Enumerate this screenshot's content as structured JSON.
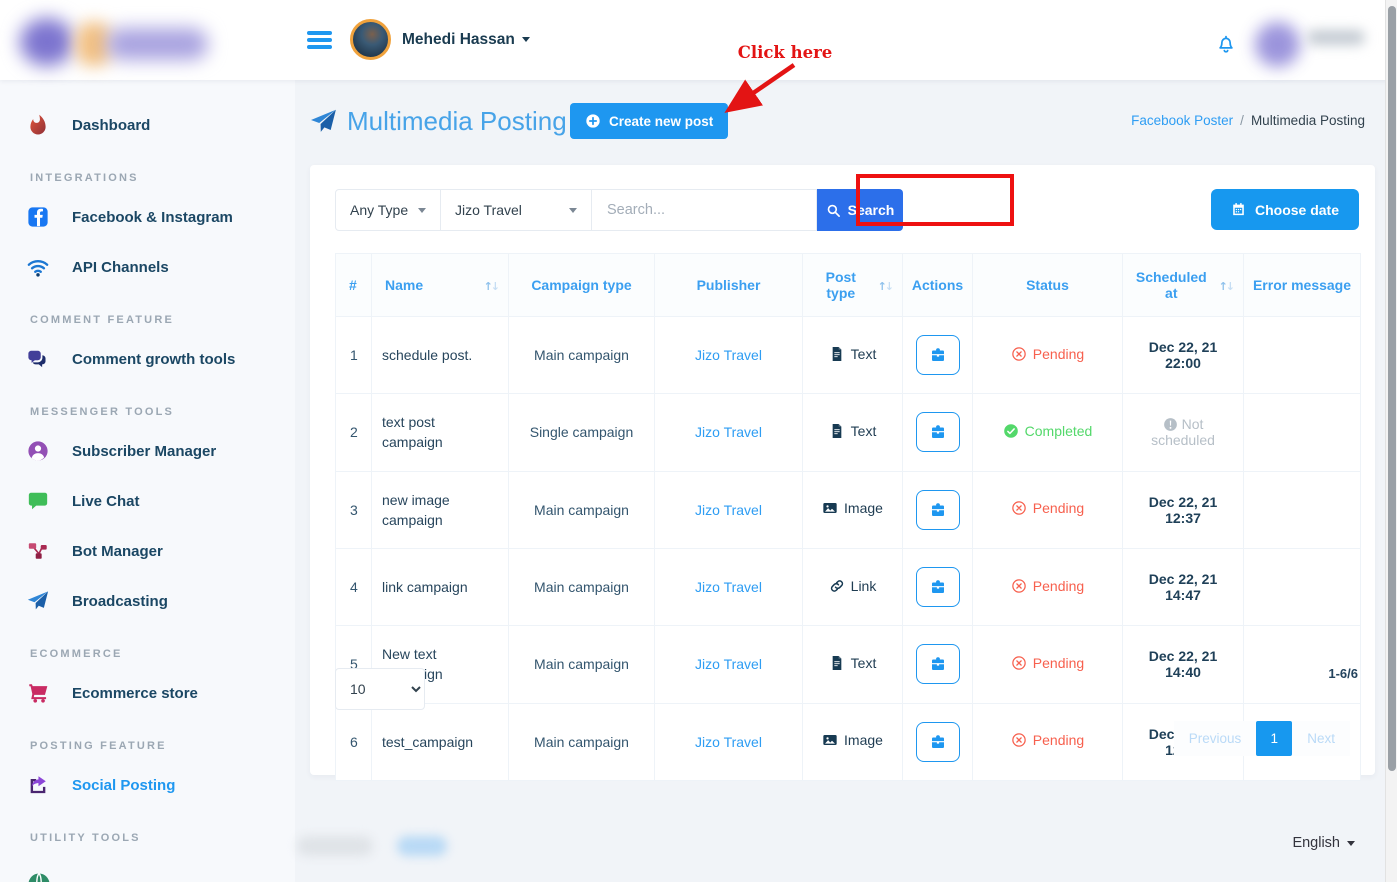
{
  "colors": {
    "primary": "#1e97f0",
    "search_button": "#2c6fea",
    "pending": "#f7604e",
    "completed": "#53d86a",
    "annotation_red": "#ee1111",
    "link_blue": "#2e9df3"
  },
  "header": {
    "user_name": "Mehedi Hassan"
  },
  "annotation": {
    "label": "Click here"
  },
  "sidebar": {
    "items": [
      {
        "type": "item",
        "id": "dashboard",
        "icon": "flame",
        "label": "Dashboard"
      },
      {
        "type": "section",
        "label": "INTEGRATIONS"
      },
      {
        "type": "item",
        "id": "facebook-instagram",
        "icon": "facebook",
        "label": "Facebook & Instagram"
      },
      {
        "type": "item",
        "id": "api-channels",
        "icon": "wifi",
        "label": "API Channels"
      },
      {
        "type": "section",
        "label": "COMMENT FEATURE"
      },
      {
        "type": "item",
        "id": "comment-growth-tools",
        "icon": "comments",
        "label": "Comment growth tools"
      },
      {
        "type": "section",
        "label": "MESSENGER TOOLS"
      },
      {
        "type": "item",
        "id": "subscriber-manager",
        "icon": "user",
        "label": "Subscriber Manager"
      },
      {
        "type": "item",
        "id": "live-chat",
        "icon": "chat",
        "label": "Live Chat"
      },
      {
        "type": "item",
        "id": "bot-manager",
        "icon": "sitemap",
        "label": "Bot Manager"
      },
      {
        "type": "item",
        "id": "broadcasting",
        "icon": "plane",
        "label": "Broadcasting"
      },
      {
        "type": "section",
        "label": "ECOMMERCE"
      },
      {
        "type": "item",
        "id": "ecommerce-store",
        "icon": "cart",
        "label": "Ecommerce store"
      },
      {
        "type": "section",
        "label": "POSTING FEATURE"
      },
      {
        "type": "item",
        "id": "social-posting",
        "icon": "share",
        "label": "Social Posting",
        "active": true
      },
      {
        "type": "section",
        "label": "UTILITY TOOLS"
      }
    ]
  },
  "page": {
    "title": "Multimedia Posting",
    "create_button": "Create new post",
    "breadcrumb": {
      "parent": "Facebook Poster",
      "separator": "/",
      "current": "Multimedia Posting"
    }
  },
  "filters": {
    "type_select": "Any Type",
    "publisher_select": "Jizo Travel",
    "search_placeholder": "Search...",
    "search_button": "Search",
    "choose_date_button": "Choose date"
  },
  "table": {
    "columns": [
      {
        "label": "#"
      },
      {
        "label": "Name",
        "sortable": true
      },
      {
        "label": "Campaign type"
      },
      {
        "label": "Publisher"
      },
      {
        "label": "Post type",
        "sortable": true
      },
      {
        "label": "Actions"
      },
      {
        "label": "Status"
      },
      {
        "label": "Scheduled at",
        "sortable": true
      },
      {
        "label": "Error message"
      }
    ],
    "rows": [
      {
        "num": "1",
        "name": "schedule post.",
        "campaign_type": "Main campaign",
        "publisher": "Jizo Travel",
        "post_type": "Text",
        "status": "Pending",
        "scheduled": true,
        "scheduled_at": "Dec 22, 21 22:00",
        "error_message": ""
      },
      {
        "num": "2",
        "name": "text post campaign",
        "campaign_type": "Single campaign",
        "publisher": "Jizo Travel",
        "post_type": "Text",
        "status": "Completed",
        "scheduled": false,
        "scheduled_at": "Not scheduled",
        "error_message": ""
      },
      {
        "num": "3",
        "name": "new image campaign",
        "campaign_type": "Main campaign",
        "publisher": "Jizo Travel",
        "post_type": "Image",
        "status": "Pending",
        "scheduled": true,
        "scheduled_at": "Dec 22, 21 12:37",
        "error_message": ""
      },
      {
        "num": "4",
        "name": "link campaign",
        "campaign_type": "Main campaign",
        "publisher": "Jizo Travel",
        "post_type": "Link",
        "status": "Pending",
        "scheduled": true,
        "scheduled_at": "Dec 22, 21 14:47",
        "error_message": ""
      },
      {
        "num": "5",
        "name": "New text campaign",
        "campaign_type": "Main campaign",
        "publisher": "Jizo Travel",
        "post_type": "Text",
        "status": "Pending",
        "scheduled": true,
        "scheduled_at": "Dec 22, 21 14:40",
        "error_message": ""
      },
      {
        "num": "6",
        "name": "test_campaign",
        "campaign_type": "Main campaign",
        "publisher": "Jizo Travel",
        "post_type": "Image",
        "status": "Pending",
        "scheduled": true,
        "scheduled_at": "Dec 22, 21 12:36",
        "error_message": ""
      }
    ]
  },
  "pagination": {
    "page_size": "10",
    "range": "1-6/6",
    "previous": "Previous",
    "current": "1",
    "next": "Next"
  },
  "footer": {
    "language": "English"
  }
}
